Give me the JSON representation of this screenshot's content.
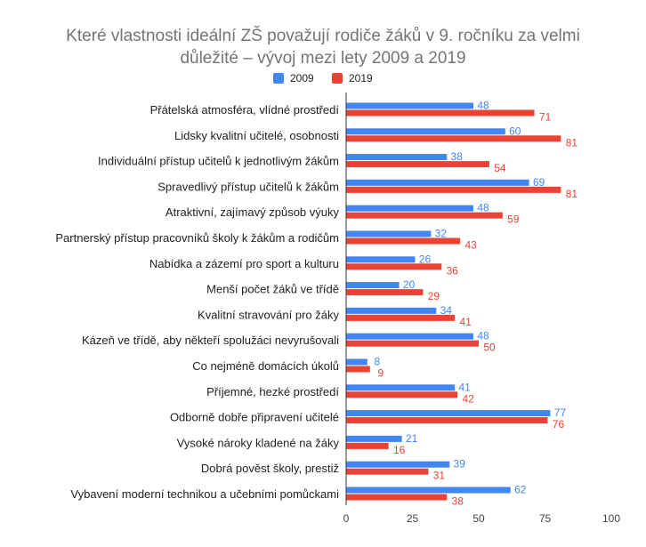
{
  "chart_data": {
    "type": "bar",
    "orientation": "horizontal",
    "title_lines": [
      "Které vlastnosti ideální ZŠ považují rodiče žáků v 9. ročníku za velmi",
      "důležité – vývoj mezi lety 2009 a 2019"
    ],
    "xlabel": "",
    "ylabel": "",
    "xlim": [
      0,
      100
    ],
    "xticks": [
      0,
      25,
      50,
      75,
      100
    ],
    "grid": false,
    "legend_position": "top",
    "categories": [
      "Přátelská atmosféra, vlídné prostředí",
      "Lidsky kvalitní učitelé, osobnosti",
      "Individuální přístup učitelů k jednotlivým žákům",
      "Spravedlivý přístup učitelů k žákům",
      "Atraktivní, zajímavý způsob výuky",
      "Partnerský přístup pracovníků školy k žákům a rodičům",
      "Nabídka a zázemí pro sport a kulturu",
      "Menší počet žáků ve třídě",
      "Kvalitní stravování pro žáky",
      "Kázeň ve třídě, aby někteří spolužáci nevyrušovali",
      "Co nejméně domácích úkolů",
      "Příjemné, hezké prostředí",
      "Odborně dobře připravení učitelé",
      "Vysoké nároky kladené na žáky",
      "Dobrá pověst školy, prestiž",
      "Vybavení moderní technikou a učebními pomůckami"
    ],
    "series": [
      {
        "name": "2009",
        "color": "#4285f4",
        "values": [
          48,
          60,
          38,
          69,
          48,
          32,
          26,
          20,
          34,
          48,
          8,
          41,
          77,
          21,
          39,
          62
        ]
      },
      {
        "name": "2019",
        "color": "#ea4335",
        "values": [
          71,
          81,
          54,
          81,
          59,
          43,
          36,
          29,
          41,
          50,
          9,
          42,
          76,
          16,
          31,
          38
        ]
      }
    ]
  }
}
